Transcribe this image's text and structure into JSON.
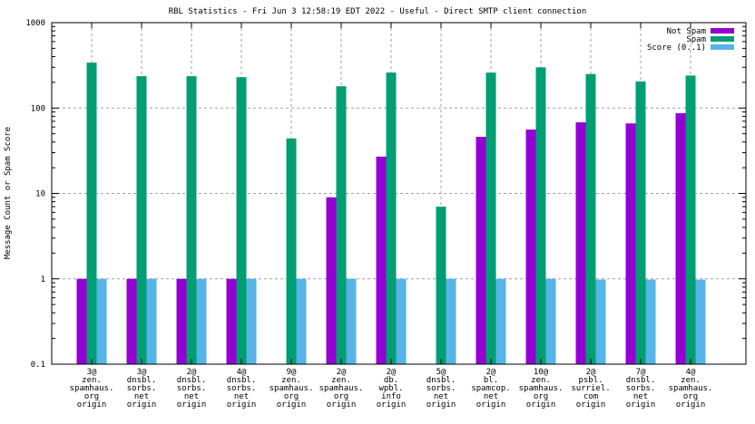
{
  "chart_data": {
    "type": "bar",
    "title": "RBL Statistics - Fri Jun  3 12:58:19 EDT 2022 - Useful - Direct SMTP client connection",
    "xlabel": "",
    "ylabel": "Message Count or Spam Score",
    "yscale": "log",
    "ylim": [
      0.1,
      1000
    ],
    "yticks": [
      "0.1",
      "1",
      "10",
      "100",
      "1000"
    ],
    "grid": true,
    "legend_position": "top-right",
    "categories": [
      [
        "3@",
        "zen.",
        "spamhaus.",
        "org",
        "origin"
      ],
      [
        "3@",
        "dnsbl.",
        "sorbs.",
        "net",
        "origin"
      ],
      [
        "2@",
        "dnsbl.",
        "sorbs.",
        "net",
        "origin"
      ],
      [
        "4@",
        "dnsbl.",
        "sorbs.",
        "net",
        "origin"
      ],
      [
        "9@",
        "zen.",
        "spamhaus.",
        "org",
        "origin"
      ],
      [
        "2@",
        "zen.",
        "spamhaus.",
        "org",
        "origin"
      ],
      [
        "2@",
        "db.",
        "wpbl.",
        "info",
        "origin"
      ],
      [
        "5@",
        "dnsbl.",
        "sorbs.",
        "net",
        "origin"
      ],
      [
        "2@",
        "bl.",
        "spamcop.",
        "net",
        "origin"
      ],
      [
        "10@",
        "zen.",
        "spamhaus.",
        "org",
        "origin"
      ],
      [
        "2@",
        "psbl.",
        "surriel.",
        "com",
        "origin"
      ],
      [
        "7@",
        "dnsbl.",
        "sorbs.",
        "net",
        "origin"
      ],
      [
        "4@",
        "zen.",
        "spamhaus.",
        "org",
        "origin"
      ]
    ],
    "series": [
      {
        "name": "Not Spam",
        "color": "#9400d3",
        "values": [
          1,
          1,
          1,
          1,
          null,
          9,
          27,
          null,
          46,
          56,
          68,
          66,
          87
        ]
      },
      {
        "name": "Spam",
        "color": "#009e73",
        "values": [
          340,
          236,
          236,
          230,
          44,
          180,
          260,
          7,
          260,
          300,
          250,
          205,
          240
        ]
      },
      {
        "name": "Score (0..1)",
        "color": "#56b4e9",
        "values": [
          1,
          1,
          1,
          1,
          1,
          1,
          1,
          1,
          1,
          1,
          0.98,
          0.98,
          0.98
        ]
      }
    ]
  }
}
